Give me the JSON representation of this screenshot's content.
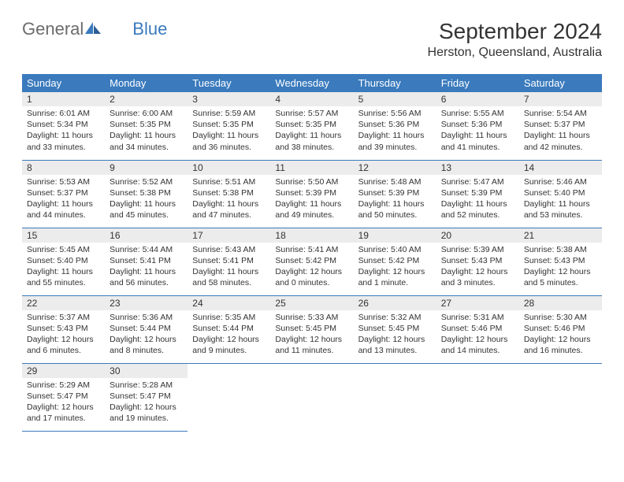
{
  "logo": {
    "text1": "General",
    "text2": "Blue"
  },
  "title": "September 2024",
  "location": "Herston, Queensland, Australia",
  "colors": {
    "header_bg": "#3a7abd",
    "header_text": "#ffffff",
    "daynum_bg": "#ececec",
    "border": "#3a7abd",
    "text": "#333333",
    "logo_gray": "#6c6c6c",
    "logo_blue": "#3a7abd"
  },
  "weekdays": [
    "Sunday",
    "Monday",
    "Tuesday",
    "Wednesday",
    "Thursday",
    "Friday",
    "Saturday"
  ],
  "days": [
    {
      "n": "1",
      "sunrise": "Sunrise: 6:01 AM",
      "sunset": "Sunset: 5:34 PM",
      "daylight": "Daylight: 11 hours and 33 minutes."
    },
    {
      "n": "2",
      "sunrise": "Sunrise: 6:00 AM",
      "sunset": "Sunset: 5:35 PM",
      "daylight": "Daylight: 11 hours and 34 minutes."
    },
    {
      "n": "3",
      "sunrise": "Sunrise: 5:59 AM",
      "sunset": "Sunset: 5:35 PM",
      "daylight": "Daylight: 11 hours and 36 minutes."
    },
    {
      "n": "4",
      "sunrise": "Sunrise: 5:57 AM",
      "sunset": "Sunset: 5:35 PM",
      "daylight": "Daylight: 11 hours and 38 minutes."
    },
    {
      "n": "5",
      "sunrise": "Sunrise: 5:56 AM",
      "sunset": "Sunset: 5:36 PM",
      "daylight": "Daylight: 11 hours and 39 minutes."
    },
    {
      "n": "6",
      "sunrise": "Sunrise: 5:55 AM",
      "sunset": "Sunset: 5:36 PM",
      "daylight": "Daylight: 11 hours and 41 minutes."
    },
    {
      "n": "7",
      "sunrise": "Sunrise: 5:54 AM",
      "sunset": "Sunset: 5:37 PM",
      "daylight": "Daylight: 11 hours and 42 minutes."
    },
    {
      "n": "8",
      "sunrise": "Sunrise: 5:53 AM",
      "sunset": "Sunset: 5:37 PM",
      "daylight": "Daylight: 11 hours and 44 minutes."
    },
    {
      "n": "9",
      "sunrise": "Sunrise: 5:52 AM",
      "sunset": "Sunset: 5:38 PM",
      "daylight": "Daylight: 11 hours and 45 minutes."
    },
    {
      "n": "10",
      "sunrise": "Sunrise: 5:51 AM",
      "sunset": "Sunset: 5:38 PM",
      "daylight": "Daylight: 11 hours and 47 minutes."
    },
    {
      "n": "11",
      "sunrise": "Sunrise: 5:50 AM",
      "sunset": "Sunset: 5:39 PM",
      "daylight": "Daylight: 11 hours and 49 minutes."
    },
    {
      "n": "12",
      "sunrise": "Sunrise: 5:48 AM",
      "sunset": "Sunset: 5:39 PM",
      "daylight": "Daylight: 11 hours and 50 minutes."
    },
    {
      "n": "13",
      "sunrise": "Sunrise: 5:47 AM",
      "sunset": "Sunset: 5:39 PM",
      "daylight": "Daylight: 11 hours and 52 minutes."
    },
    {
      "n": "14",
      "sunrise": "Sunrise: 5:46 AM",
      "sunset": "Sunset: 5:40 PM",
      "daylight": "Daylight: 11 hours and 53 minutes."
    },
    {
      "n": "15",
      "sunrise": "Sunrise: 5:45 AM",
      "sunset": "Sunset: 5:40 PM",
      "daylight": "Daylight: 11 hours and 55 minutes."
    },
    {
      "n": "16",
      "sunrise": "Sunrise: 5:44 AM",
      "sunset": "Sunset: 5:41 PM",
      "daylight": "Daylight: 11 hours and 56 minutes."
    },
    {
      "n": "17",
      "sunrise": "Sunrise: 5:43 AM",
      "sunset": "Sunset: 5:41 PM",
      "daylight": "Daylight: 11 hours and 58 minutes."
    },
    {
      "n": "18",
      "sunrise": "Sunrise: 5:41 AM",
      "sunset": "Sunset: 5:42 PM",
      "daylight": "Daylight: 12 hours and 0 minutes."
    },
    {
      "n": "19",
      "sunrise": "Sunrise: 5:40 AM",
      "sunset": "Sunset: 5:42 PM",
      "daylight": "Daylight: 12 hours and 1 minute."
    },
    {
      "n": "20",
      "sunrise": "Sunrise: 5:39 AM",
      "sunset": "Sunset: 5:43 PM",
      "daylight": "Daylight: 12 hours and 3 minutes."
    },
    {
      "n": "21",
      "sunrise": "Sunrise: 5:38 AM",
      "sunset": "Sunset: 5:43 PM",
      "daylight": "Daylight: 12 hours and 5 minutes."
    },
    {
      "n": "22",
      "sunrise": "Sunrise: 5:37 AM",
      "sunset": "Sunset: 5:43 PM",
      "daylight": "Daylight: 12 hours and 6 minutes."
    },
    {
      "n": "23",
      "sunrise": "Sunrise: 5:36 AM",
      "sunset": "Sunset: 5:44 PM",
      "daylight": "Daylight: 12 hours and 8 minutes."
    },
    {
      "n": "24",
      "sunrise": "Sunrise: 5:35 AM",
      "sunset": "Sunset: 5:44 PM",
      "daylight": "Daylight: 12 hours and 9 minutes."
    },
    {
      "n": "25",
      "sunrise": "Sunrise: 5:33 AM",
      "sunset": "Sunset: 5:45 PM",
      "daylight": "Daylight: 12 hours and 11 minutes."
    },
    {
      "n": "26",
      "sunrise": "Sunrise: 5:32 AM",
      "sunset": "Sunset: 5:45 PM",
      "daylight": "Daylight: 12 hours and 13 minutes."
    },
    {
      "n": "27",
      "sunrise": "Sunrise: 5:31 AM",
      "sunset": "Sunset: 5:46 PM",
      "daylight": "Daylight: 12 hours and 14 minutes."
    },
    {
      "n": "28",
      "sunrise": "Sunrise: 5:30 AM",
      "sunset": "Sunset: 5:46 PM",
      "daylight": "Daylight: 12 hours and 16 minutes."
    },
    {
      "n": "29",
      "sunrise": "Sunrise: 5:29 AM",
      "sunset": "Sunset: 5:47 PM",
      "daylight": "Daylight: 12 hours and 17 minutes."
    },
    {
      "n": "30",
      "sunrise": "Sunrise: 5:28 AM",
      "sunset": "Sunset: 5:47 PM",
      "daylight": "Daylight: 12 hours and 19 minutes."
    }
  ],
  "start_weekday": 0,
  "total_cells": 35
}
